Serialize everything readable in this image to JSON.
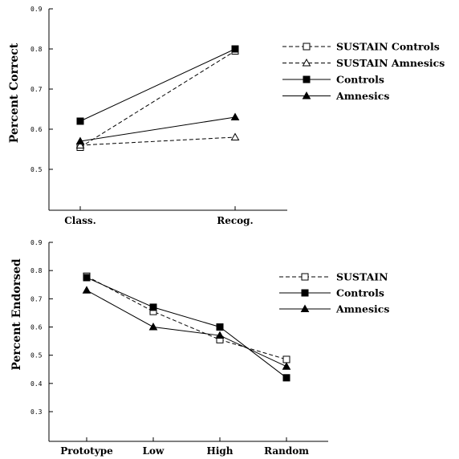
{
  "chart_data": [
    {
      "type": "line",
      "ylabel": "Percent Correct",
      "categories": [
        "Class.",
        "Recog."
      ],
      "ylim": [
        0.4,
        0.9
      ],
      "yticks": [
        "0.5",
        "0.6",
        "0.7",
        "0.8",
        "0.9"
      ],
      "legend_position": "right",
      "series": [
        {
          "name": "SUSTAIN Controls",
          "values": [
            0.555,
            0.795
          ],
          "dash": "dashed",
          "marker": "open-square"
        },
        {
          "name": "SUSTAIN Amnesics",
          "values": [
            0.56,
            0.58
          ],
          "dash": "dashed",
          "marker": "open-triangle"
        },
        {
          "name": "Controls",
          "values": [
            0.62,
            0.8
          ],
          "dash": "solid",
          "marker": "filled-square"
        },
        {
          "name": "Amnesics",
          "values": [
            0.57,
            0.63
          ],
          "dash": "solid",
          "marker": "filled-triangle"
        }
      ]
    },
    {
      "type": "line",
      "ylabel": "Percent Endorsed",
      "categories": [
        "Prototype",
        "Low",
        "High",
        "Random"
      ],
      "ylim": [
        0.2,
        0.9
      ],
      "yticks": [
        "0.3",
        "0.4",
        "0.5",
        "0.6",
        "0.7",
        "0.8",
        "0.9"
      ],
      "legend_position": "right",
      "series": [
        {
          "name": "SUSTAIN",
          "values": [
            0.78,
            0.655,
            0.555,
            0.485
          ],
          "dash": "dashed",
          "marker": "open-square"
        },
        {
          "name": "Controls",
          "values": [
            0.775,
            0.67,
            0.6,
            0.42
          ],
          "dash": "solid",
          "marker": "filled-square"
        },
        {
          "name": "Amnesics",
          "values": [
            0.73,
            0.6,
            0.57,
            0.46
          ],
          "dash": "solid",
          "marker": "filled-triangle"
        }
      ]
    }
  ]
}
